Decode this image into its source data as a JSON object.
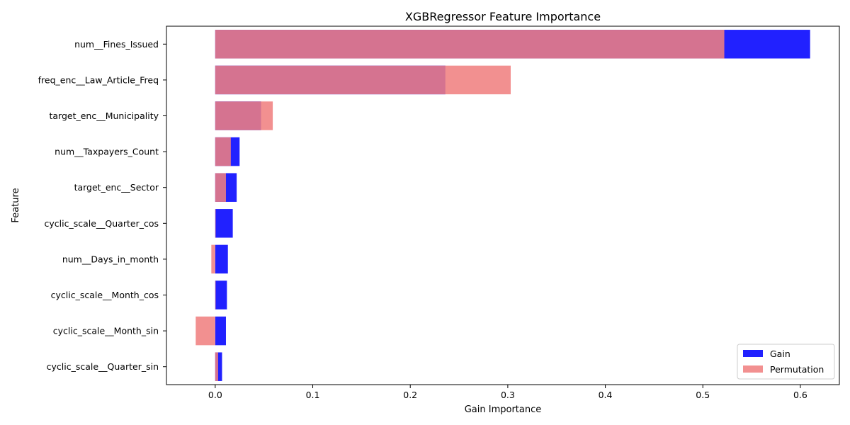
{
  "chart_data": {
    "type": "bar",
    "orientation": "horizontal",
    "title": "XGBRegressor Feature Importance",
    "xlabel": "Gain Importance",
    "ylabel": "Feature",
    "xlim": [
      -0.05,
      0.64
    ],
    "x_ticks": [
      0.0,
      0.1,
      0.2,
      0.3,
      0.4,
      0.5,
      0.6
    ],
    "x_tick_labels": [
      "0.0",
      "0.1",
      "0.2",
      "0.3",
      "0.4",
      "0.5",
      "0.6"
    ],
    "grid": false,
    "legend_position": "bottom-right",
    "categories": [
      "num__Fines_Issued",
      "freq_enc__Law_Article_Freq",
      "target_enc__Municipality",
      "num__Taxpayers_Count",
      "target_enc__Sector",
      "cyclic_scale__Quarter_cos",
      "num__Days_in_month",
      "cyclic_scale__Month_cos",
      "cyclic_scale__Month_sin",
      "cyclic_scale__Quarter_sin"
    ],
    "series": [
      {
        "name": "Gain",
        "color": "#0000ff",
        "values": [
          0.61,
          0.236,
          0.047,
          0.025,
          0.022,
          0.018,
          0.013,
          0.012,
          0.011,
          0.007
        ]
      },
      {
        "name": "Permutation",
        "color": "#f08080",
        "values": [
          0.522,
          0.303,
          0.059,
          0.016,
          0.011,
          0.0,
          -0.004,
          0.0,
          -0.02,
          0.003
        ]
      }
    ]
  }
}
